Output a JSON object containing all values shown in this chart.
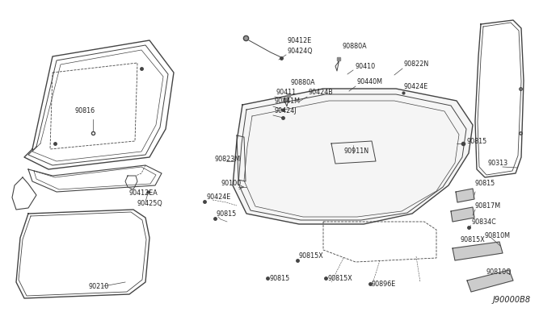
{
  "bg_color": "#ffffff",
  "line_color": "#444444",
  "text_color": "#222222",
  "diagram_id": "J90000B8"
}
